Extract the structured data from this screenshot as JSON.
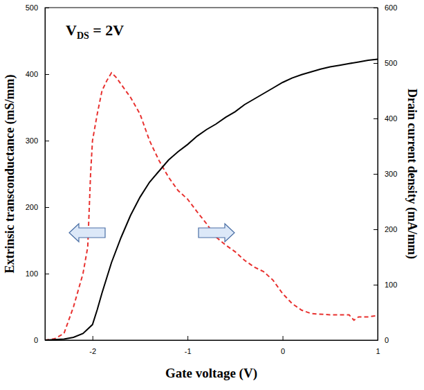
{
  "chart_data": {
    "type": "line",
    "x_label": "Gate voltage (V)",
    "y_label": "Extrinsic transconductance (mS/mm)",
    "y2_label": "Drain current density (mA/mm)",
    "annotations": [
      {
        "text": "V",
        "subscript": "DS",
        "suffix": " = 2V"
      }
    ],
    "xlim": [
      -2.5,
      1
    ],
    "xticks": [
      -2,
      -1,
      0,
      1
    ],
    "ylim": [
      0,
      500
    ],
    "yticks": [
      0,
      100,
      200,
      300,
      400,
      500
    ],
    "y2lim": [
      0,
      600
    ],
    "y2ticks": [
      0,
      100,
      200,
      300,
      400,
      500,
      600
    ],
    "grid": false,
    "series": [
      {
        "color": "#e8312f",
        "line_style": "dashed",
        "axis": "y",
        "x": [
          -2.5,
          -2.4,
          -2.3,
          -2.2,
          -2.1,
          -2.05,
          -2.02,
          -2.0,
          -1.95,
          -1.9,
          -1.85,
          -1.8,
          -1.75,
          -1.7,
          -1.6,
          -1.5,
          -1.45,
          -1.4,
          -1.3,
          -1.2,
          -1.1,
          -1.0,
          -0.9,
          -0.8,
          -0.7,
          -0.6,
          -0.5,
          -0.4,
          -0.3,
          -0.2,
          -0.1,
          0.0,
          0.1,
          0.2,
          0.3,
          0.5,
          0.7,
          0.75,
          0.8,
          0.9,
          1.0
        ],
        "values": [
          0,
          2,
          10,
          50,
          100,
          140,
          250,
          300,
          340,
          375,
          390,
          402,
          395,
          385,
          365,
          340,
          320,
          300,
          270,
          245,
          225,
          212,
          193,
          175,
          155,
          143,
          133,
          120,
          110,
          103,
          90,
          70,
          55,
          45,
          40,
          38,
          38,
          30,
          35,
          35,
          37
        ]
      },
      {
        "color": "#000000",
        "line_style": "solid",
        "axis": "y2",
        "x": [
          -2.5,
          -2.3,
          -2.2,
          -2.1,
          -2.0,
          -1.95,
          -1.9,
          -1.8,
          -1.7,
          -1.6,
          -1.5,
          -1.4,
          -1.3,
          -1.2,
          -1.1,
          -1.0,
          -0.9,
          -0.8,
          -0.7,
          -0.6,
          -0.5,
          -0.4,
          -0.3,
          -0.2,
          -0.1,
          0.0,
          0.1,
          0.2,
          0.3,
          0.4,
          0.5,
          0.6,
          0.7,
          0.8,
          0.9,
          1.0
        ],
        "values": [
          0,
          2,
          5,
          12,
          28,
          55,
          85,
          140,
          185,
          225,
          258,
          285,
          305,
          325,
          340,
          353,
          368,
          380,
          390,
          402,
          412,
          425,
          435,
          445,
          455,
          465,
          473,
          479,
          484,
          489,
          493,
          496,
          499,
          502,
          505,
          507
        ]
      }
    ]
  }
}
